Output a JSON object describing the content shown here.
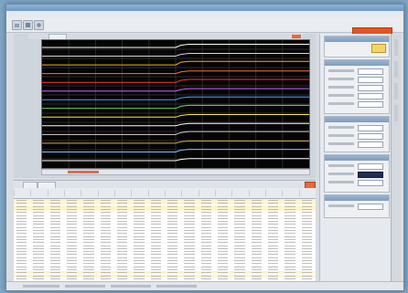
{
  "colors": {
    "accent_record": "#e55325",
    "plot_bg": "#050505",
    "trace_colors": [
      "#ffffff",
      "#d7d7d7",
      "#ffb000",
      "#ff6f3c",
      "#ff3333",
      "#cc66ff",
      "#4aa3ff",
      "#7cd36a",
      "#ffe34d",
      "#ffffff",
      "#cfcfcf",
      "#d8a64b",
      "#8ac0ff",
      "#ffffff"
    ],
    "row_highlight": "#fff4cf"
  },
  "icons": {
    "toolbar": [
      "open-icon",
      "save-icon",
      "settings-icon"
    ]
  },
  "chart_data": {
    "type": "line",
    "series": [
      {
        "x": [
          0,
          0.5,
          0.52,
          0.55,
          1
        ],
        "y": [
          0.0,
          0.0,
          0.25,
          0.35,
          0.35
        ]
      },
      {
        "x": [
          0,
          0.5,
          0.52,
          0.55,
          1
        ],
        "y": [
          0.0,
          0.0,
          0.2,
          0.3,
          0.3
        ]
      },
      {
        "x": [
          0,
          0.5,
          0.52,
          0.55,
          1
        ],
        "y": [
          0.0,
          0.0,
          0.3,
          0.38,
          0.38
        ]
      },
      {
        "x": [
          0,
          0.5,
          0.52,
          0.55,
          1
        ],
        "y": [
          0.0,
          0.0,
          0.18,
          0.28,
          0.28
        ]
      },
      {
        "x": [
          0,
          0.5,
          0.52,
          0.55,
          1
        ],
        "y": [
          0.0,
          0.0,
          0.22,
          0.32,
          0.32
        ]
      },
      {
        "x": [
          0,
          0.5,
          0.52,
          0.55,
          1
        ],
        "y": [
          0.0,
          0.0,
          0.16,
          0.26,
          0.26
        ]
      },
      {
        "x": [
          0,
          0.5,
          0.52,
          0.55,
          1
        ],
        "y": [
          0.0,
          0.0,
          0.2,
          0.3,
          0.3
        ]
      },
      {
        "x": [
          0,
          0.5,
          0.52,
          0.55,
          1
        ],
        "y": [
          0.0,
          0.0,
          0.24,
          0.34,
          0.34
        ]
      },
      {
        "x": [
          0,
          0.5,
          0.52,
          0.55,
          1
        ],
        "y": [
          0.0,
          0.0,
          0.18,
          0.28,
          0.28
        ]
      },
      {
        "x": [
          0,
          0.5,
          0.52,
          0.55,
          1
        ],
        "y": [
          0.0,
          0.0,
          0.15,
          0.25,
          0.25
        ]
      },
      {
        "x": [
          0,
          0.5,
          0.52,
          0.55,
          1
        ],
        "y": [
          0.0,
          0.0,
          0.22,
          0.33,
          0.33
        ]
      },
      {
        "x": [
          0,
          0.5,
          0.52,
          0.55,
          1
        ],
        "y": [
          0.0,
          0.0,
          0.16,
          0.24,
          0.24
        ]
      },
      {
        "x": [
          0,
          0.5,
          0.52,
          0.55,
          1
        ],
        "y": [
          0.0,
          0.0,
          0.2,
          0.29,
          0.29
        ]
      },
      {
        "x": [
          0,
          0.5,
          0.52,
          0.55,
          1
        ],
        "y": [
          0.0,
          0.0,
          0.14,
          0.22,
          0.22
        ]
      }
    ],
    "grid": true
  },
  "table": {
    "column_count": 18,
    "row_count": 27,
    "highlight_rows": [
      0,
      1,
      2,
      3,
      24,
      25
    ]
  }
}
